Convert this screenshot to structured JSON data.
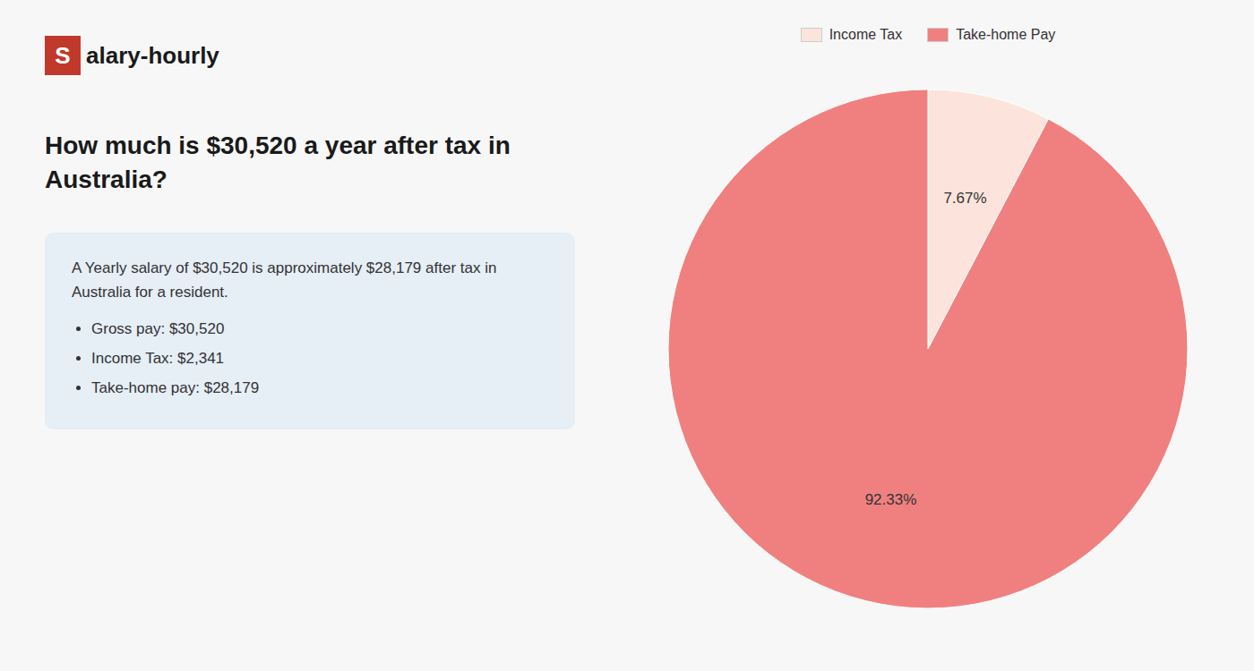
{
  "chart_data": {
    "type": "pie",
    "title": "How much is $30,520 a year after tax in Australia?",
    "annotations": [
      "S",
      "alary-hourly",
      "A Yearly salary of $30,520 is approximately $28,179 after tax in Australia for a resident.",
      "Gross pay: $30,520",
      "Income Tax: $2,341",
      "Take-home pay: $28,179"
    ],
    "categories": [
      "Income Tax",
      "Take-home Pay"
    ],
    "values": [
      7.67,
      92.33
    ],
    "value_labels": [
      "7.67%",
      "92.33%"
    ],
    "colors": [
      "#fce4dc",
      "#f08080"
    ],
    "data_labels": true,
    "legend": "top"
  }
}
